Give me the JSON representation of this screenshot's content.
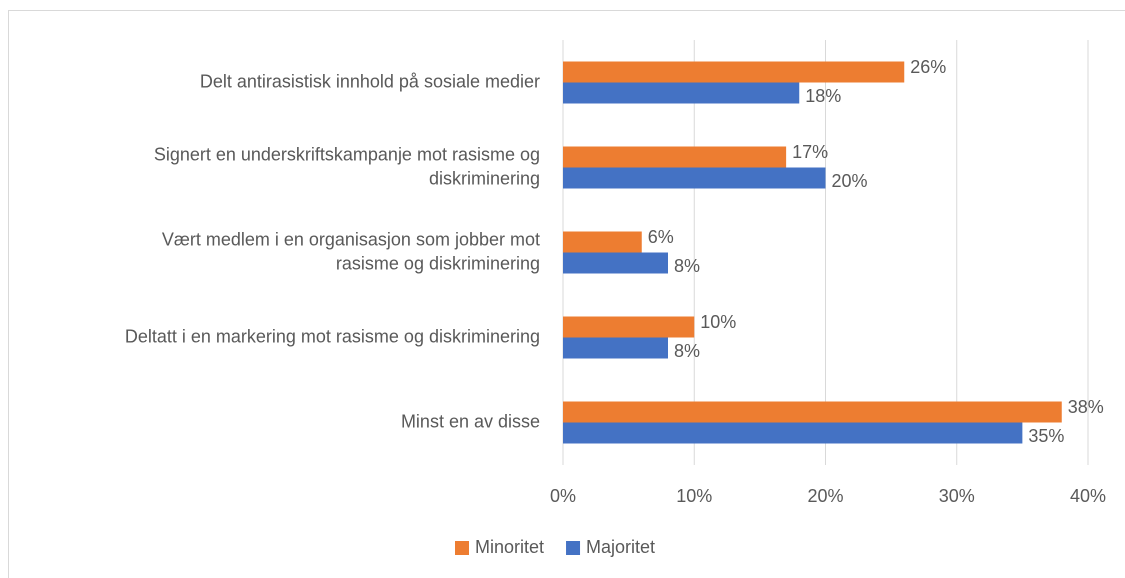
{
  "chart_data": {
    "type": "hbar",
    "categories": [
      [
        "Delt antirasistisk innhold på sosiale medier"
      ],
      [
        "Signert en underskriftskampanje mot rasisme og",
        "diskriminering"
      ],
      [
        "Vært medlem i en organisasjon som jobber mot",
        "rasisme og diskriminering"
      ],
      [
        "Deltatt i en markering mot rasisme og diskriminering"
      ],
      [
        "Minst en av disse"
      ]
    ],
    "series": [
      {
        "name": "Minoritet",
        "color": "#ED7D31",
        "values": [
          26,
          17,
          6,
          10,
          38
        ],
        "value_labels": [
          "26%",
          "17%",
          "6%",
          "10%",
          "38%"
        ]
      },
      {
        "name": "Majoritet",
        "color": "#4472C4",
        "values": [
          18,
          20,
          8,
          8,
          35
        ],
        "value_labels": [
          "18%",
          "20%",
          "8%",
          "8%",
          "35%"
        ]
      }
    ],
    "xlim": [
      0,
      40
    ],
    "xticks": [
      {
        "value": 0,
        "label": "0%"
      },
      {
        "value": 10,
        "label": "10%"
      },
      {
        "value": 20,
        "label": "20%"
      },
      {
        "value": 30,
        "label": "30%"
      },
      {
        "value": 40,
        "label": "40%"
      }
    ],
    "grid": true,
    "legend": "bottom"
  }
}
